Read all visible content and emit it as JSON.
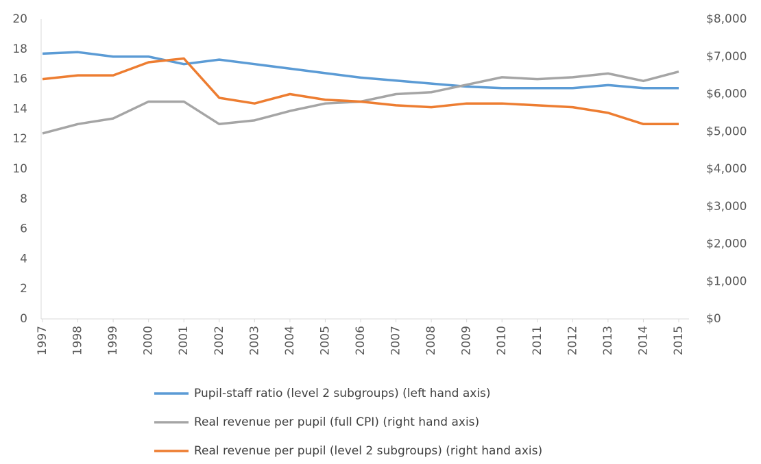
{
  "chart_data": {
    "type": "line",
    "categories": [
      "1997",
      "1998",
      "1999",
      "2000",
      "2001",
      "2002",
      "2003",
      "2004",
      "2005",
      "2006",
      "2007",
      "2008",
      "2009",
      "2010",
      "2011",
      "2012",
      "2013",
      "2014",
      "2015"
    ],
    "ylim": [
      0,
      20
    ],
    "yticks": [
      0,
      2,
      4,
      6,
      8,
      10,
      12,
      14,
      16,
      18,
      20
    ],
    "y2lim": [
      0,
      8000
    ],
    "y2ticks": [
      {
        "value": 0,
        "label": "$0"
      },
      {
        "value": 1000,
        "label": "$1,000"
      },
      {
        "value": 2000,
        "label": "$2,000"
      },
      {
        "value": 3000,
        "label": "$3,000"
      },
      {
        "value": 4000,
        "label": "$4,000"
      },
      {
        "value": 5000,
        "label": "$5,000"
      },
      {
        "value": 6000,
        "label": "$6,000"
      },
      {
        "value": 7000,
        "label": "$7,000"
      },
      {
        "value": 8000,
        "label": "$8,000"
      }
    ],
    "grid": false,
    "legend": "bottom",
    "series": [
      {
        "name": "Pupil-staff ratio (level 2 subgroups) (left hand axis)",
        "color": "#5b9bd5",
        "axis": "y",
        "values": [
          17.7,
          17.8,
          17.5,
          17.5,
          17.0,
          17.3,
          17.0,
          16.7,
          16.4,
          16.1,
          15.9,
          15.7,
          15.5,
          15.4,
          15.4,
          15.4,
          15.6,
          15.4,
          15.4
        ]
      },
      {
        "name": "Real revenue per pupil (full CPI) (right hand axis)",
        "color": "#a5a5a5",
        "axis": "y2",
        "values": [
          4950,
          5200,
          5350,
          5800,
          5800,
          5200,
          5300,
          5550,
          5750,
          5800,
          6000,
          6050,
          6250,
          6450,
          6400,
          6450,
          6550,
          6350,
          6600
        ]
      },
      {
        "name": "Real revenue per pupil (level 2 subgroups) (right hand axis)",
        "color": "#ed7d31",
        "axis": "y2",
        "values": [
          6400,
          6500,
          6500,
          6850,
          6950,
          5900,
          5750,
          6000,
          5850,
          5800,
          5700,
          5650,
          5750,
          5750,
          5700,
          5650,
          5500,
          5200,
          5200
        ]
      }
    ]
  }
}
